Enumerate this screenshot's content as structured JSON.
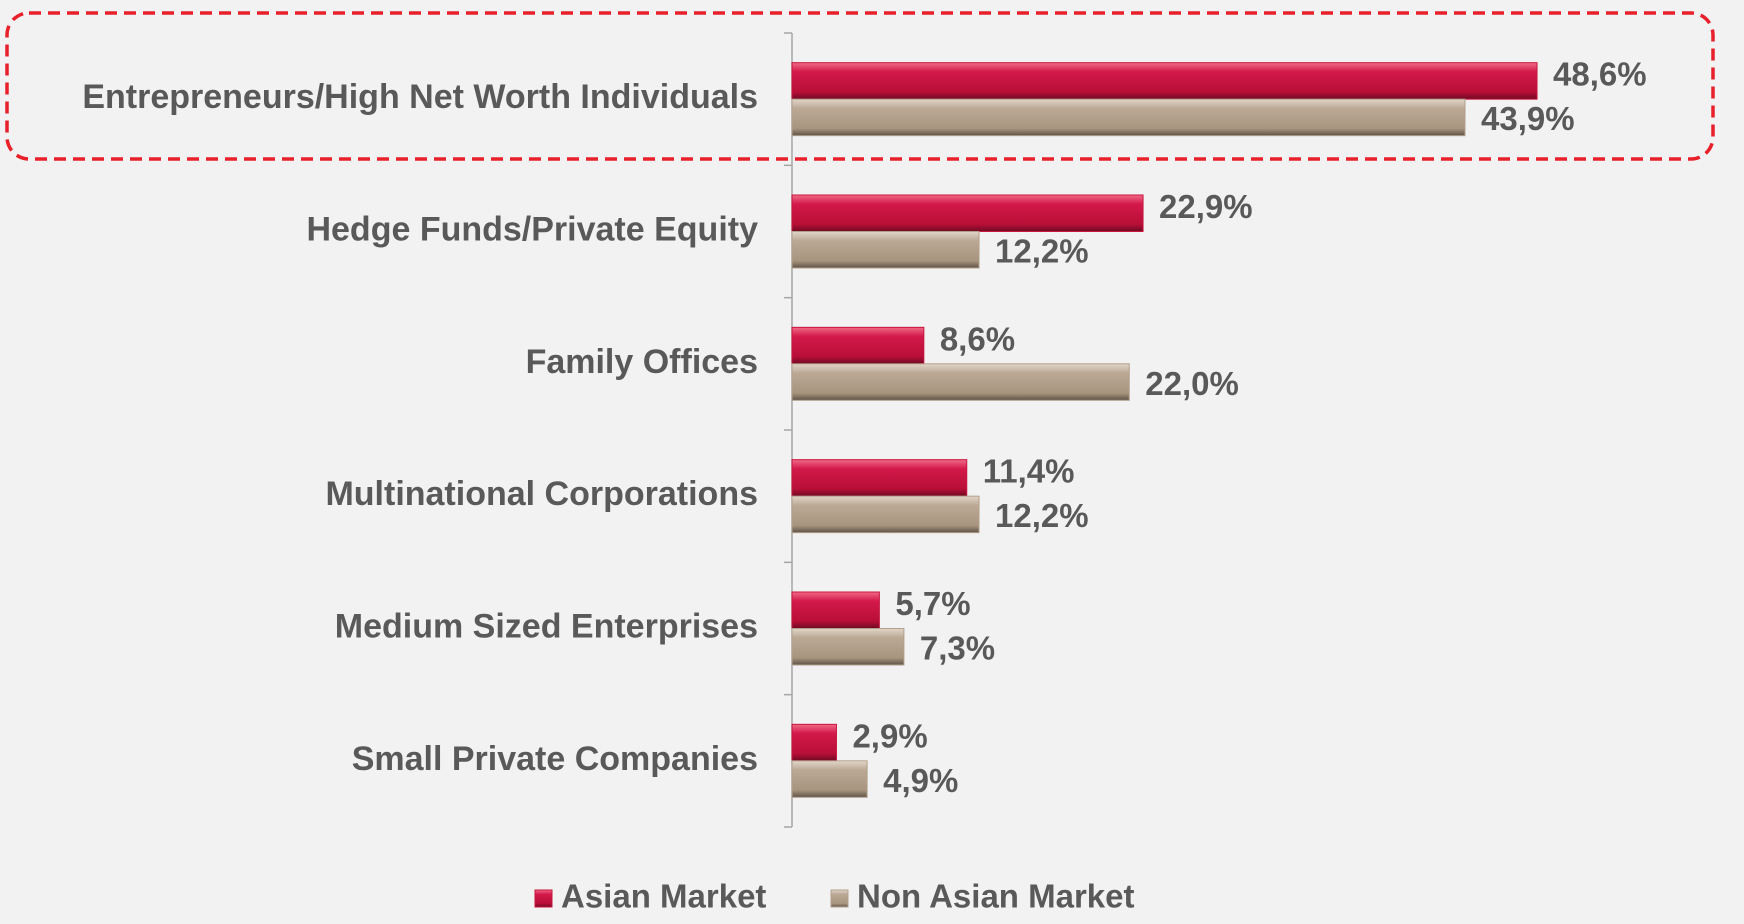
{
  "chart_data": {
    "type": "hbar",
    "categories": [
      "Entrepreneurs/High Net Worth Individuals",
      "Hedge Funds/Private Equity",
      "Family Offices",
      "Multinational Corporations",
      "Medium Sized Enterprises",
      "Small Private Companies"
    ],
    "series": [
      {
        "name": "Asian Market",
        "color": "#c8153f",
        "values": [
          48.6,
          22.9,
          8.6,
          11.4,
          5.7,
          2.9
        ],
        "value_labels": [
          "48,6%",
          "22,9%",
          "8,6%",
          "11,4%",
          "5,7%",
          "2,9%"
        ]
      },
      {
        "name": "Non Asian Market",
        "color": "#b2a08d",
        "values": [
          43.9,
          12.2,
          22.0,
          12.2,
          7.3,
          4.9
        ],
        "value_labels": [
          "43,9%",
          "12,2%",
          "22,0%",
          "12,2%",
          "7,3%",
          "4,9%"
        ]
      }
    ],
    "legend": "bottom"
  }
}
